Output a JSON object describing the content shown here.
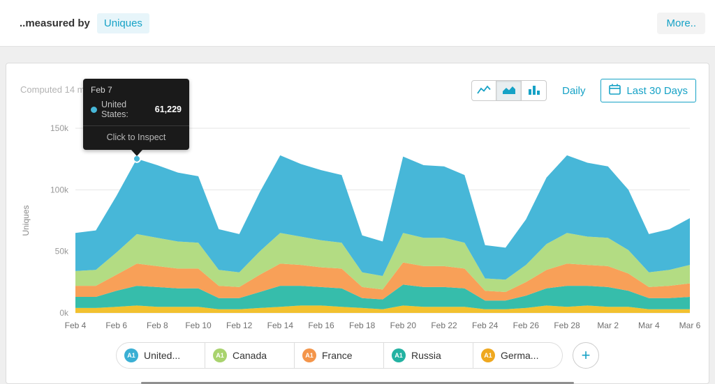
{
  "accent_color": "#16a2c6",
  "header": {
    "measured_by_label": "..measured by",
    "metric_label": "Uniques",
    "more_label": "More.."
  },
  "panel": {
    "computed_label": "Computed 14 m",
    "controls": {
      "chart_type_options": [
        "line",
        "area",
        "bar"
      ],
      "selected_chart_type": "area",
      "granularity_label": "Daily",
      "date_range_label": "Last 30 Days"
    },
    "tooltip": {
      "date": "Feb 7",
      "series_label": "United States:",
      "value": "61,229",
      "action": "Click to Inspect"
    },
    "legend": {
      "badge": "A1",
      "items": [
        {
          "label": "United...",
          "color": "#3aafd4"
        },
        {
          "label": "Canada",
          "color": "#a9d36e"
        },
        {
          "label": "France",
          "color": "#f4954a"
        },
        {
          "label": "Russia",
          "color": "#23b2a2"
        },
        {
          "label": "Germa...",
          "color": "#efa81f"
        }
      ],
      "add_label": "+"
    }
  },
  "icons": {
    "line_chart": "polyline",
    "area_chart": "filled-area",
    "bar_chart": "vertical-bars",
    "calendar": "calendar-grid",
    "add": "+",
    "tooltip_marker": "●"
  },
  "chart_data": {
    "type": "area",
    "stacked": true,
    "title": "",
    "xlabel": "",
    "ylabel": "Uniques",
    "unit": "thousands (k) of uniques",
    "ylim": [
      0,
      150
    ],
    "grid": "horizontal",
    "legend_position": "bottom",
    "yticks": [
      {
        "v": 0,
        "label": "0k"
      },
      {
        "v": 50,
        "label": "50k"
      },
      {
        "v": 100,
        "label": "100k"
      },
      {
        "v": 150,
        "label": "150k"
      }
    ],
    "x": [
      "Feb 4",
      "Feb 5",
      "Feb 6",
      "Feb 7",
      "Feb 8",
      "Feb 9",
      "Feb 10",
      "Feb 11",
      "Feb 12",
      "Feb 13",
      "Feb 14",
      "Feb 15",
      "Feb 16",
      "Feb 17",
      "Feb 18",
      "Feb 19",
      "Feb 20",
      "Feb 21",
      "Feb 22",
      "Feb 23",
      "Feb 24",
      "Feb 25",
      "Feb 26",
      "Feb 27",
      "Feb 28",
      "Mar 1",
      "Mar 2",
      "Mar 3",
      "Mar 4",
      "Mar 5",
      "Mar 6"
    ],
    "xtick_labels": [
      "Feb 4",
      "Feb 6",
      "Feb 8",
      "Feb 10",
      "Feb 12",
      "Feb 14",
      "Feb 16",
      "Feb 18",
      "Feb 20",
      "Feb 22",
      "Feb 24",
      "Feb 26",
      "Feb 28",
      "Mar 2",
      "Mar 4",
      "Mar 6"
    ],
    "series_order_note": "listed bottom-to-top of stack",
    "series": [
      {
        "name": "Germany",
        "color": "#f2c12f",
        "values": [
          4,
          4,
          5,
          6,
          5,
          5,
          5,
          3,
          3,
          4,
          5,
          6,
          6,
          5,
          4,
          3,
          6,
          5,
          5,
          5,
          3,
          3,
          4,
          6,
          5,
          6,
          5,
          5,
          3,
          3,
          3
        ]
      },
      {
        "name": "Russia",
        "color": "#36bdab",
        "values": [
          9,
          9,
          13,
          16,
          16,
          15,
          15,
          9,
          9,
          13,
          17,
          16,
          15,
          15,
          8,
          8,
          17,
          16,
          16,
          15,
          7,
          7,
          10,
          14,
          17,
          16,
          16,
          13,
          9,
          9,
          10
        ]
      },
      {
        "name": "France",
        "color": "#f8a058",
        "values": [
          9,
          9,
          13,
          18,
          17,
          16,
          16,
          10,
          9,
          14,
          18,
          17,
          16,
          16,
          9,
          8,
          18,
          17,
          17,
          16,
          8,
          7,
          11,
          15,
          18,
          17,
          17,
          14,
          9,
          10,
          11
        ]
      },
      {
        "name": "Canada",
        "color": "#b3dc83",
        "values": [
          12,
          13,
          18,
          24,
          23,
          22,
          21,
          13,
          12,
          19,
          25,
          23,
          22,
          21,
          12,
          11,
          24,
          23,
          23,
          21,
          10,
          10,
          14,
          21,
          25,
          23,
          23,
          19,
          12,
          13,
          15
        ]
      },
      {
        "name": "United States",
        "color": "#47b7d8",
        "values": [
          31,
          32,
          46,
          61.2,
          59,
          56,
          54,
          33,
          31,
          48,
          63,
          59,
          57,
          55,
          30,
          28,
          62,
          59,
          58,
          55,
          27,
          26,
          37,
          54,
          63,
          60,
          58,
          49,
          31,
          33,
          38
        ]
      }
    ],
    "marker": {
      "x_index": 3,
      "series": "United States",
      "value_label": "61,229",
      "color": "#47b7d8"
    }
  }
}
